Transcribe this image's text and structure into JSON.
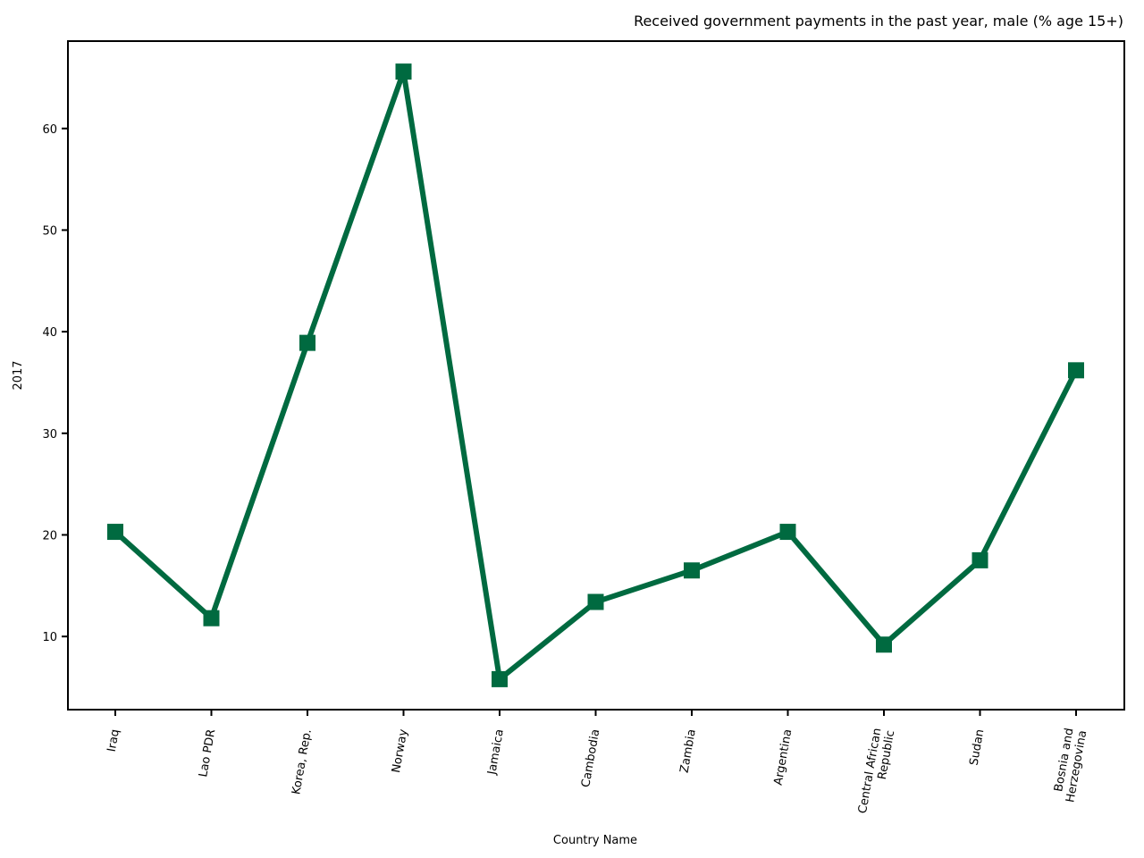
{
  "chart_data": {
    "type": "line",
    "title": "Received government payments in the past year, male (% age 15+)",
    "xlabel": "Country Name",
    "ylabel": "2017",
    "categories": [
      "Iraq",
      "Lao PDR",
      "Korea, Rep.",
      "Norway",
      "Jamaica",
      "Cambodia",
      "Zambia",
      "Argentina",
      "Central African Republic",
      "Sudan",
      "Bosnia and Herzegovina"
    ],
    "category_lines": [
      [
        "Iraq"
      ],
      [
        "Lao PDR"
      ],
      [
        "Korea, Rep."
      ],
      [
        "Norway"
      ],
      [
        "Jamaica"
      ],
      [
        "Cambodia"
      ],
      [
        "Zambia"
      ],
      [
        "Argentina"
      ],
      [
        "Central African",
        "Republic"
      ],
      [
        "Sudan"
      ],
      [
        "Bosnia and",
        "Herzegovina"
      ]
    ],
    "series": [
      {
        "values": [
          20.3,
          11.8,
          38.9,
          65.6,
          5.8,
          13.4,
          16.5,
          20.3,
          9.2,
          17.5,
          36.2
        ]
      }
    ],
    "ylim": [
      2.8,
      68.6
    ],
    "yticks": [
      10,
      20,
      30,
      40,
      50,
      60
    ],
    "grid": false,
    "legend": "none",
    "line_color": "#006a40",
    "marker": "square"
  }
}
